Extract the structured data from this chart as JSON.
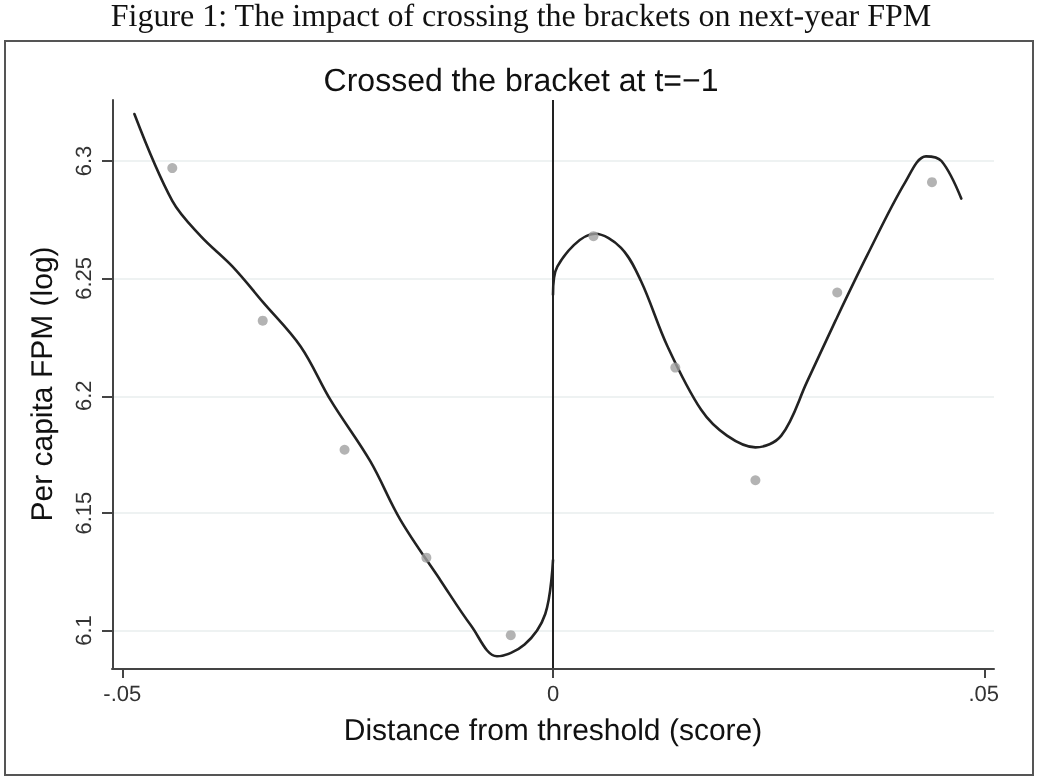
{
  "chart_data": {
    "type": "scatter",
    "title": "Figure 1: The impact of crossing the brackets on next-year FPM",
    "subtitle": "Crossed the bracket at t=−1",
    "xlabel": "Distance from threshold (score)",
    "ylabel": "Per capita FPM (log)",
    "xlim": [
      -0.0512,
      0.0512
    ],
    "ylim": [
      6.084,
      6.326
    ],
    "xticks": [
      {
        "value": -0.05,
        "label": "-.05"
      },
      0,
      {
        "value": 0.05,
        "label": ".05"
      }
    ],
    "yticks": [
      6.1,
      6.15,
      6.2,
      6.25,
      6.3
    ],
    "grid": "y",
    "ref_lines": [
      {
        "axis": "x",
        "value": 0,
        "color": "#222222"
      }
    ],
    "series": [
      {
        "color": "#a0a0a0",
        "marker": "circle",
        "x": [
          -0.0442,
          -0.0337,
          -0.0242,
          -0.0147,
          -0.0049,
          0.0047,
          0.0142,
          0.0235,
          0.033,
          0.044
        ],
        "values": [
          6.297,
          6.232,
          6.177,
          6.131,
          6.098,
          6.268,
          6.212,
          6.164,
          6.244,
          6.291
        ]
      },
      {
        "type": "line",
        "color": "#222222",
        "marker": "none",
        "line_style": "solid",
        "x": [
          -0.0486,
          -0.0442,
          -0.0409,
          -0.0372,
          -0.0337,
          -0.0293,
          -0.0258,
          -0.0212,
          -0.0177,
          -0.013,
          -0.0095,
          -0.0065,
          -0.0033,
          -0.0009,
          0
        ],
        "values": [
          6.32,
          6.283,
          6.268,
          6.255,
          6.24,
          6.221,
          6.198,
          6.172,
          6.147,
          6.121,
          6.102,
          6.089,
          6.094,
          6.107,
          6.13
        ]
      },
      {
        "type": "line",
        "color": "#222222",
        "marker": "none",
        "line_style": "solid",
        "x": [
          0,
          0.0005,
          0.0049,
          0.0079,
          0.0102,
          0.0133,
          0.0172,
          0.0202,
          0.0235,
          0.0265,
          0.0295,
          0.0328,
          0.0365,
          0.0409,
          0.0433,
          0.0451,
          0.0474
        ],
        "values": [
          6.243,
          6.255,
          6.269,
          6.263,
          6.249,
          6.221,
          6.194,
          6.183,
          6.178,
          6.183,
          6.206,
          6.232,
          6.26,
          6.291,
          6.302,
          6.3,
          6.284
        ]
      }
    ]
  }
}
